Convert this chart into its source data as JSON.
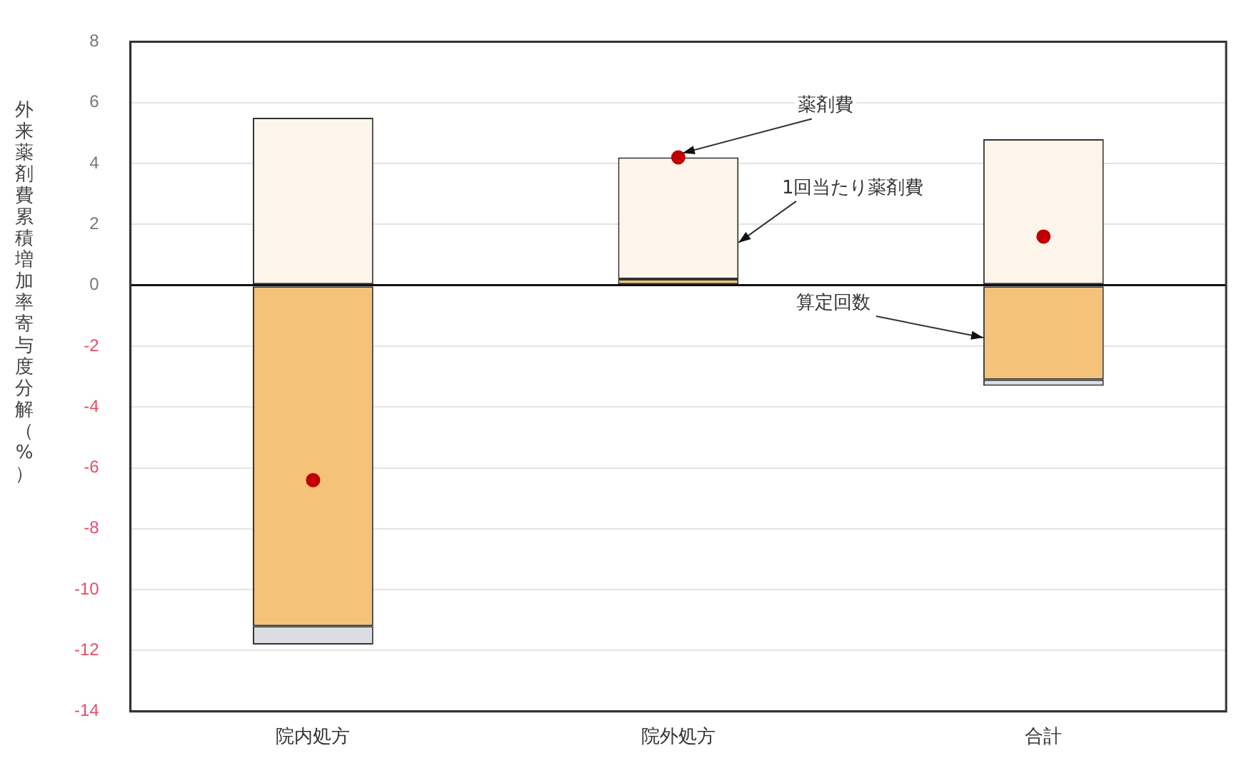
{
  "chart_data": {
    "type": "bar",
    "stacked": true,
    "ylabel": "外来薬剤費累積増加率寄与度分解（%）",
    "categories": [
      "院内処方",
      "院外処方",
      "合計"
    ],
    "series": [
      {
        "name": "算定回数",
        "color": "#f5c27a",
        "values": [
          -11.2,
          0.2,
          -3.1
        ]
      },
      {
        "name": "1回当たり薬剤費",
        "color": "#fdf4ea",
        "values": [
          5.5,
          4.0,
          4.8
        ]
      },
      {
        "color": "#dcdde3",
        "values": [
          -0.6,
          0,
          -0.2
        ]
      },
      {
        "name": "薬剤費",
        "type": "scatter",
        "color": "#c00000",
        "x": [
          "院内処方",
          "院外処方",
          "合計"
        ],
        "values": [
          -6.4,
          4.2,
          1.6
        ]
      }
    ],
    "ylim": [
      -14,
      8
    ],
    "yticks": [
      -14,
      -12,
      -10,
      -8,
      -6,
      -4,
      -2,
      0,
      2,
      4,
      6,
      8
    ],
    "grid": "y",
    "legend": false,
    "marker": "circle"
  }
}
